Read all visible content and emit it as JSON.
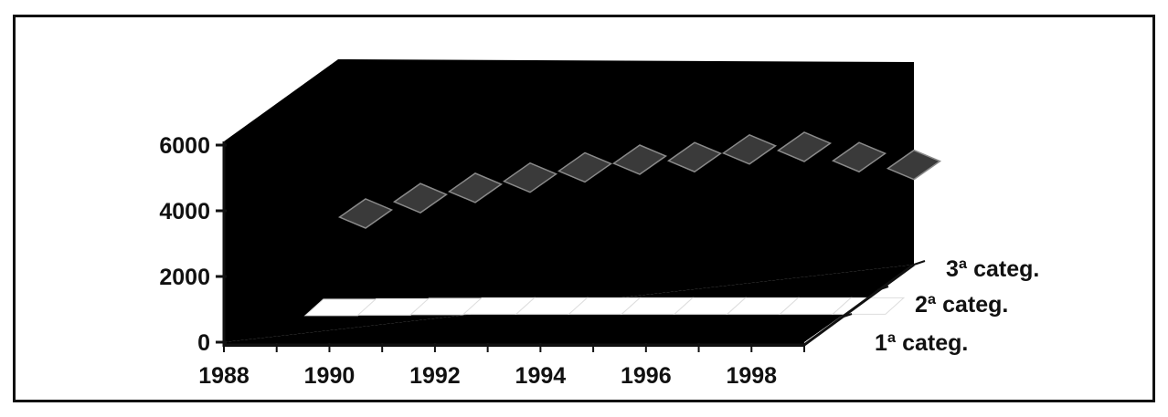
{
  "chart_data": {
    "type": "area",
    "projection": "3d",
    "x": [
      1989,
      1990,
      1991,
      1992,
      1993,
      1994,
      1995,
      1996,
      1997,
      1998,
      1999
    ],
    "x_tick_labels": [
      "1988",
      "1990",
      "1992",
      "1994",
      "1996",
      "1998"
    ],
    "y_tick_labels": [
      "0",
      "2000",
      "4000",
      "6000"
    ],
    "ylim": [
      0,
      6000
    ],
    "series": [
      {
        "name": "1ª categ.",
        "values": [
          1100,
          1150,
          1200,
          1250,
          1250,
          1250,
          1250,
          1250,
          1250,
          1250,
          1250
        ]
      },
      {
        "name": "2ª categ.",
        "values": [
          0,
          0,
          0,
          0,
          0,
          0,
          0,
          0,
          0,
          0,
          0
        ]
      },
      {
        "name": "3ª categ.",
        "values": [
          2600,
          3200,
          3600,
          4000,
          4400,
          4700,
          4800,
          5100,
          5200,
          4800,
          4500
        ]
      }
    ],
    "colors": {
      "background": "#ffffff",
      "plot_fill": "#000000",
      "front_surface": "#ffffff",
      "back_surface": "#3a3a3a",
      "ink": "#111111"
    }
  }
}
